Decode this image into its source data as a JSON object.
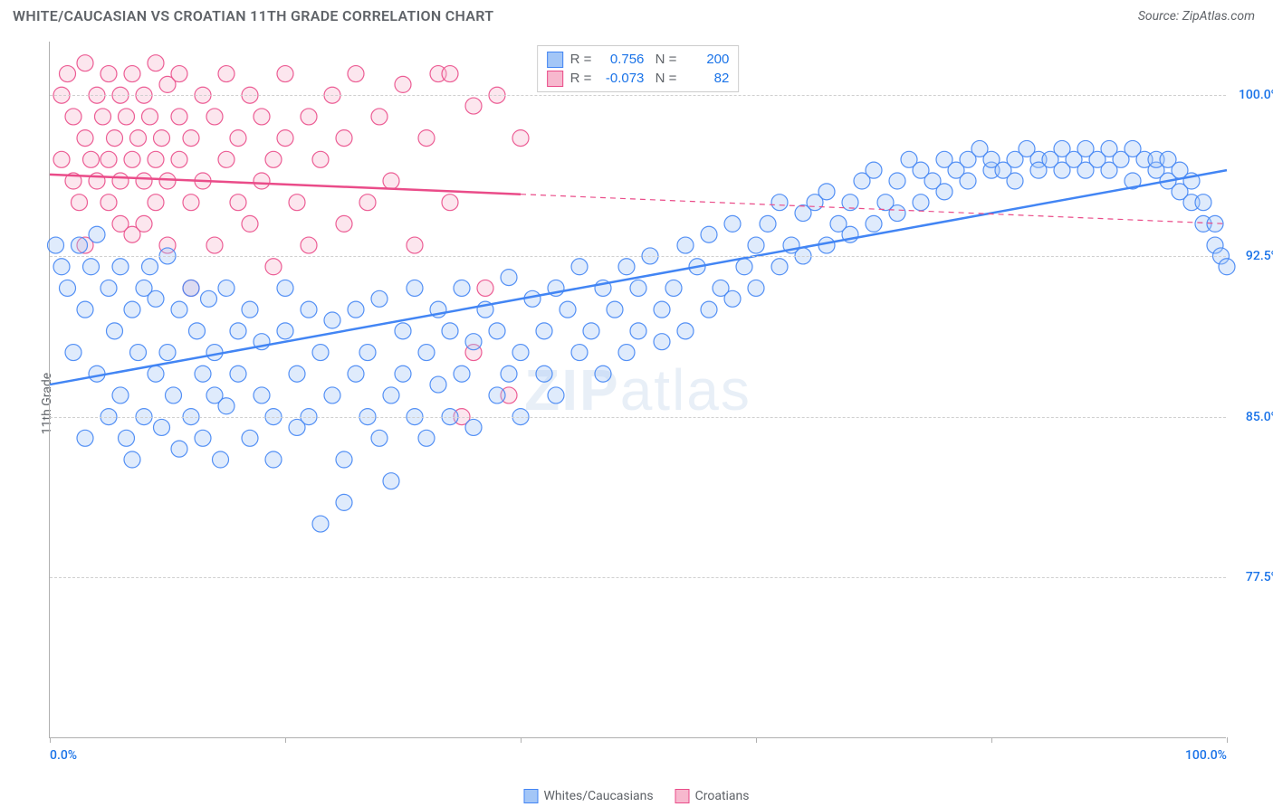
{
  "title": "WHITE/CAUCASIAN VS CROATIAN 11TH GRADE CORRELATION CHART",
  "source": "Source: ZipAtlas.com",
  "y_axis_title": "11th Grade",
  "watermark": {
    "bold": "ZIP",
    "light": "atlas"
  },
  "chart": {
    "type": "scatter",
    "background_color": "#ffffff",
    "grid_color": "#d0d0d0",
    "axis_color": "#b0b0b0",
    "xlim": [
      0,
      100
    ],
    "ylim": [
      70,
      102.5
    ],
    "x_ticks": [
      0,
      20,
      40,
      60,
      80,
      100
    ],
    "y_ticks": [
      77.5,
      85.0,
      92.5,
      100.0
    ],
    "x_tick_labels": {
      "0": "0.0%",
      "100": "100.0%"
    },
    "y_tick_labels": [
      "77.5%",
      "85.0%",
      "92.5%",
      "100.0%"
    ],
    "marker_radius": 9,
    "marker_fill_opacity": 0.35,
    "marker_stroke_opacity": 0.9,
    "line_width_solid": 2.5,
    "line_width_dash": 1.2,
    "series": [
      {
        "name": "Whites/Caucasians",
        "color": "#4285f4",
        "fill": "#a3c6f7",
        "stroke": "#4285f4",
        "R": "0.756",
        "N": "200",
        "trend": {
          "x1": 0,
          "y1": 86.5,
          "x2": 100,
          "y2": 96.5,
          "solid_until_x": 100
        },
        "points": [
          [
            0.5,
            93
          ],
          [
            1,
            92
          ],
          [
            1.5,
            91
          ],
          [
            2,
            88
          ],
          [
            2.5,
            93
          ],
          [
            3,
            90
          ],
          [
            3,
            84
          ],
          [
            3.5,
            92
          ],
          [
            4,
            87
          ],
          [
            4,
            93.5
          ],
          [
            5,
            91
          ],
          [
            5,
            85
          ],
          [
            5.5,
            89
          ],
          [
            6,
            92
          ],
          [
            6,
            86
          ],
          [
            6.5,
            84
          ],
          [
            7,
            90
          ],
          [
            7,
            83
          ],
          [
            7.5,
            88
          ],
          [
            8,
            91
          ],
          [
            8,
            85
          ],
          [
            8.5,
            92
          ],
          [
            9,
            87
          ],
          [
            9,
            90.5
          ],
          [
            9.5,
            84.5
          ],
          [
            10,
            92.5
          ],
          [
            10,
            88
          ],
          [
            10.5,
            86
          ],
          [
            11,
            90
          ],
          [
            11,
            83.5
          ],
          [
            12,
            91
          ],
          [
            12,
            85
          ],
          [
            12.5,
            89
          ],
          [
            13,
            87
          ],
          [
            13,
            84
          ],
          [
            13.5,
            90.5
          ],
          [
            14,
            86
          ],
          [
            14,
            88
          ],
          [
            14.5,
            83
          ],
          [
            15,
            91
          ],
          [
            15,
            85.5
          ],
          [
            16,
            89
          ],
          [
            16,
            87
          ],
          [
            17,
            84
          ],
          [
            17,
            90
          ],
          [
            18,
            86
          ],
          [
            18,
            88.5
          ],
          [
            19,
            85
          ],
          [
            19,
            83
          ],
          [
            20,
            89
          ],
          [
            20,
            91
          ],
          [
            21,
            87
          ],
          [
            21,
            84.5
          ],
          [
            22,
            90
          ],
          [
            22,
            85
          ],
          [
            23,
            88
          ],
          [
            23,
            80
          ],
          [
            24,
            86
          ],
          [
            24,
            89.5
          ],
          [
            25,
            83
          ],
          [
            25,
            81
          ],
          [
            26,
            90
          ],
          [
            26,
            87
          ],
          [
            27,
            85
          ],
          [
            27,
            88
          ],
          [
            28,
            84
          ],
          [
            28,
            90.5
          ],
          [
            29,
            86
          ],
          [
            29,
            82
          ],
          [
            30,
            89
          ],
          [
            30,
            87
          ],
          [
            31,
            85
          ],
          [
            31,
            91
          ],
          [
            32,
            88
          ],
          [
            32,
            84
          ],
          [
            33,
            90
          ],
          [
            33,
            86.5
          ],
          [
            34,
            89
          ],
          [
            34,
            85
          ],
          [
            35,
            87
          ],
          [
            35,
            91
          ],
          [
            36,
            88.5
          ],
          [
            36,
            84.5
          ],
          [
            37,
            90
          ],
          [
            38,
            86
          ],
          [
            38,
            89
          ],
          [
            39,
            87
          ],
          [
            39,
            91.5
          ],
          [
            40,
            88
          ],
          [
            40,
            85
          ],
          [
            41,
            90.5
          ],
          [
            42,
            87
          ],
          [
            42,
            89
          ],
          [
            43,
            91
          ],
          [
            43,
            86
          ],
          [
            44,
            90
          ],
          [
            45,
            88
          ],
          [
            45,
            92
          ],
          [
            46,
            89
          ],
          [
            47,
            91
          ],
          [
            47,
            87
          ],
          [
            48,
            90
          ],
          [
            49,
            92
          ],
          [
            49,
            88
          ],
          [
            50,
            91
          ],
          [
            50,
            89
          ],
          [
            51,
            92.5
          ],
          [
            52,
            90
          ],
          [
            52,
            88.5
          ],
          [
            53,
            91
          ],
          [
            54,
            93
          ],
          [
            54,
            89
          ],
          [
            55,
            92
          ],
          [
            56,
            90
          ],
          [
            56,
            93.5
          ],
          [
            57,
            91
          ],
          [
            58,
            94
          ],
          [
            58,
            90.5
          ],
          [
            59,
            92
          ],
          [
            60,
            93
          ],
          [
            60,
            91
          ],
          [
            61,
            94
          ],
          [
            62,
            92
          ],
          [
            62,
            95
          ],
          [
            63,
            93
          ],
          [
            64,
            94.5
          ],
          [
            64,
            92.5
          ],
          [
            65,
            95
          ],
          [
            66,
            93
          ],
          [
            66,
            95.5
          ],
          [
            67,
            94
          ],
          [
            68,
            95
          ],
          [
            68,
            93.5
          ],
          [
            69,
            96
          ],
          [
            70,
            94
          ],
          [
            70,
            96.5
          ],
          [
            71,
            95
          ],
          [
            72,
            96
          ],
          [
            72,
            94.5
          ],
          [
            73,
            97
          ],
          [
            74,
            95
          ],
          [
            74,
            96.5
          ],
          [
            75,
            96
          ],
          [
            76,
            97
          ],
          [
            76,
            95.5
          ],
          [
            77,
            96.5
          ],
          [
            78,
            97
          ],
          [
            78,
            96
          ],
          [
            79,
            97.5
          ],
          [
            80,
            96.5
          ],
          [
            80,
            97
          ],
          [
            81,
            96.5
          ],
          [
            82,
            97
          ],
          [
            82,
            96
          ],
          [
            83,
            97.5
          ],
          [
            84,
            97
          ],
          [
            84,
            96.5
          ],
          [
            85,
            97
          ],
          [
            86,
            97.5
          ],
          [
            86,
            96.5
          ],
          [
            87,
            97
          ],
          [
            88,
            97.5
          ],
          [
            88,
            96.5
          ],
          [
            89,
            97
          ],
          [
            90,
            97.5
          ],
          [
            90,
            96.5
          ],
          [
            91,
            97
          ],
          [
            92,
            97.5
          ],
          [
            92,
            96
          ],
          [
            93,
            97
          ],
          [
            94,
            96.5
          ],
          [
            94,
            97
          ],
          [
            95,
            96
          ],
          [
            95,
            97
          ],
          [
            96,
            95.5
          ],
          [
            96,
            96.5
          ],
          [
            97,
            95
          ],
          [
            97,
            96
          ],
          [
            98,
            94
          ],
          [
            98,
            95
          ],
          [
            99,
            93
          ],
          [
            99,
            94
          ],
          [
            99.5,
            92.5
          ],
          [
            100,
            92
          ]
        ]
      },
      {
        "name": "Croatians",
        "color": "#ea4c89",
        "fill": "#f7b8ce",
        "stroke": "#ea4c89",
        "R": "-0.073",
        "N": "82",
        "trend": {
          "x1": 0,
          "y1": 96.3,
          "x2": 100,
          "y2": 94.0,
          "solid_until_x": 40
        },
        "points": [
          [
            1,
            97
          ],
          [
            1,
            100
          ],
          [
            1.5,
            101
          ],
          [
            2,
            96
          ],
          [
            2,
            99
          ],
          [
            2.5,
            95
          ],
          [
            3,
            98
          ],
          [
            3,
            101.5
          ],
          [
            3,
            93
          ],
          [
            3.5,
            97
          ],
          [
            4,
            100
          ],
          [
            4,
            96
          ],
          [
            4.5,
            99
          ],
          [
            5,
            95
          ],
          [
            5,
            101
          ],
          [
            5,
            97
          ],
          [
            5.5,
            98
          ],
          [
            6,
            94
          ],
          [
            6,
            100
          ],
          [
            6,
            96
          ],
          [
            6.5,
            99
          ],
          [
            7,
            97
          ],
          [
            7,
            101
          ],
          [
            7,
            93.5
          ],
          [
            7.5,
            98
          ],
          [
            8,
            96
          ],
          [
            8,
            100
          ],
          [
            8,
            94
          ],
          [
            8.5,
            99
          ],
          [
            9,
            97
          ],
          [
            9,
            101.5
          ],
          [
            9,
            95
          ],
          [
            9.5,
            98
          ],
          [
            10,
            96
          ],
          [
            10,
            100.5
          ],
          [
            10,
            93
          ],
          [
            11,
            99
          ],
          [
            11,
            97
          ],
          [
            11,
            101
          ],
          [
            12,
            95
          ],
          [
            12,
            98
          ],
          [
            12,
            91
          ],
          [
            13,
            100
          ],
          [
            13,
            96
          ],
          [
            14,
            99
          ],
          [
            14,
            93
          ],
          [
            15,
            97
          ],
          [
            15,
            101
          ],
          [
            16,
            95
          ],
          [
            16,
            98
          ],
          [
            17,
            100
          ],
          [
            17,
            94
          ],
          [
            18,
            96
          ],
          [
            18,
            99
          ],
          [
            19,
            97
          ],
          [
            19,
            92
          ],
          [
            20,
            98
          ],
          [
            20,
            101
          ],
          [
            21,
            95
          ],
          [
            22,
            99
          ],
          [
            22,
            93
          ],
          [
            23,
            97
          ],
          [
            24,
            100
          ],
          [
            25,
            94
          ],
          [
            25,
            98
          ],
          [
            26,
            101
          ],
          [
            27,
            95
          ],
          [
            28,
            99
          ],
          [
            29,
            96
          ],
          [
            30,
            100.5
          ],
          [
            31,
            93
          ],
          [
            32,
            98
          ],
          [
            33,
            101
          ],
          [
            34,
            95
          ],
          [
            35,
            85
          ],
          [
            36,
            99.5
          ],
          [
            37,
            91
          ],
          [
            38,
            100
          ],
          [
            39,
            86
          ],
          [
            40,
            98
          ],
          [
            34,
            101
          ],
          [
            36,
            88
          ]
        ]
      }
    ]
  },
  "legend_bottom": [
    {
      "label": "Whites/Caucasians",
      "fill": "#a3c6f7",
      "stroke": "#4285f4"
    },
    {
      "label": "Croatians",
      "fill": "#f7b8ce",
      "stroke": "#ea4c89"
    }
  ]
}
